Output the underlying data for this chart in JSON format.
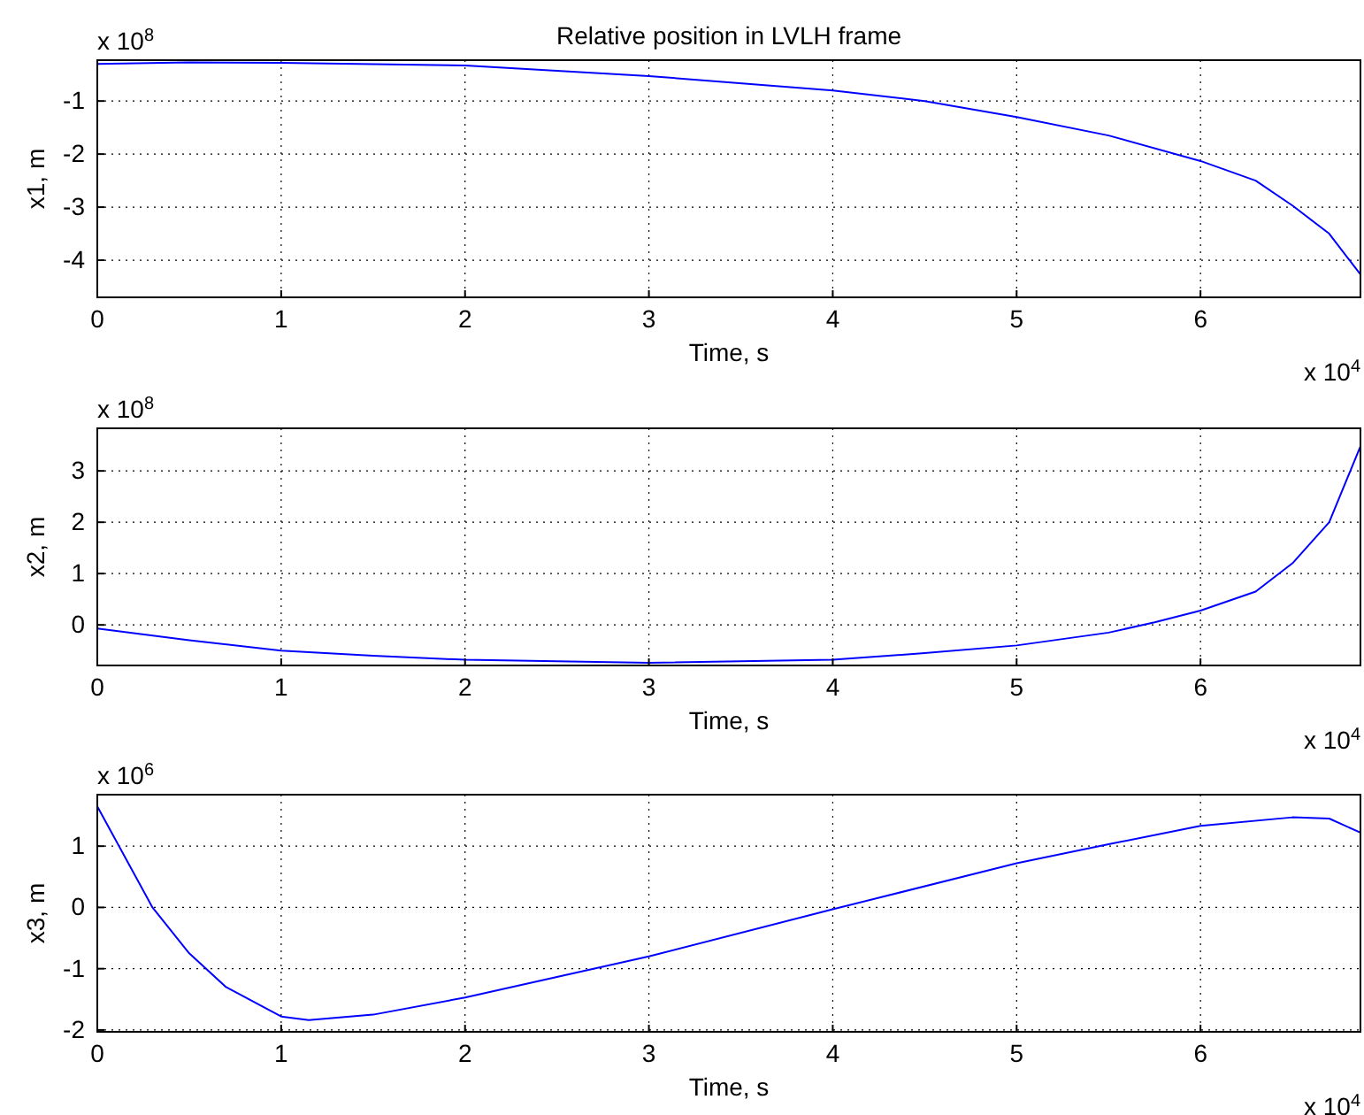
{
  "chart_data": [
    {
      "type": "line",
      "title": "Relative position in LVLH frame",
      "xlabel": "Time, s",
      "ylabel": "x1, m",
      "annotations": [
        "x 10$^{8}$",
        "x 10$^{4}$"
      ],
      "xlim": [
        0,
        6.87
      ],
      "xticks": [
        0,
        1,
        2,
        3,
        4,
        5,
        6
      ],
      "ylim": [
        -4.7,
        -0.23
      ],
      "yticks": [
        -4,
        -3,
        -2,
        -1
      ],
      "grid": true,
      "x": [
        0,
        0.5,
        1,
        2,
        3,
        4,
        4.5,
        5,
        5.5,
        6,
        6.3,
        6.5,
        6.7,
        6.87
      ],
      "series": [
        {
          "color": "#0000ff",
          "values": [
            -0.3,
            -0.27,
            -0.28,
            -0.33,
            -0.53,
            -0.8,
            -1.0,
            -1.3,
            -1.65,
            -2.13,
            -2.5,
            -2.97,
            -3.5,
            -4.27
          ]
        }
      ]
    },
    {
      "type": "line",
      "xlabel": "Time, s",
      "ylabel": "x2, m",
      "annotations": [
        "x 10$^{8}$",
        "x 10$^{4}$"
      ],
      "xlim": [
        0,
        6.87
      ],
      "xticks": [
        0,
        1,
        2,
        3,
        4,
        5,
        6
      ],
      "ylim": [
        -0.79,
        3.83
      ],
      "yticks": [
        0,
        1,
        2,
        3
      ],
      "grid": true,
      "x": [
        0,
        0.5,
        1,
        1.5,
        2,
        3,
        4,
        4.5,
        5,
        5.5,
        5.75,
        6,
        6.3,
        6.5,
        6.7,
        6.87
      ],
      "series": [
        {
          "color": "#0000ff",
          "values": [
            -0.07,
            -0.3,
            -0.5,
            -0.6,
            -0.68,
            -0.74,
            -0.68,
            -0.55,
            -0.4,
            -0.15,
            0.05,
            0.28,
            0.65,
            1.2,
            2.0,
            3.48
          ]
        }
      ]
    },
    {
      "type": "line",
      "xlabel": "Time, s",
      "ylabel": "x3, m",
      "annotations": [
        "x 10$^{6}$",
        "x 10$^{4}$"
      ],
      "xlim": [
        0,
        6.87
      ],
      "xticks": [
        0,
        1,
        2,
        3,
        4,
        5,
        6
      ],
      "ylim": [
        -2.03,
        1.84
      ],
      "yticks": [
        -2,
        -1,
        0,
        1
      ],
      "grid": true,
      "x": [
        0,
        0.3,
        0.5,
        0.7,
        1,
        1.15,
        1.5,
        2,
        3,
        4,
        5,
        5.5,
        6,
        6.5,
        6.7,
        6.87
      ],
      "series": [
        {
          "color": "#0000ff",
          "values": [
            1.65,
            0,
            -0.75,
            -1.3,
            -1.78,
            -1.84,
            -1.75,
            -1.47,
            -0.8,
            -0.03,
            0.72,
            1.03,
            1.33,
            1.47,
            1.45,
            1.22
          ]
        }
      ]
    }
  ]
}
